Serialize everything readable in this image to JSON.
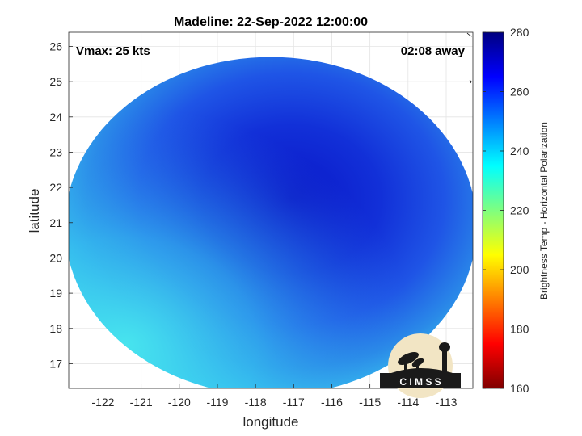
{
  "chart_data": {
    "type": "heatmap",
    "title": "Madeline: 22-Sep-2022 12:00:00",
    "xlabel": "longitude",
    "ylabel": "latitude",
    "xlim": [
      -122.9,
      -112.3
    ],
    "ylim": [
      16.3,
      26.4
    ],
    "x_ticks": [
      -122,
      -121,
      -120,
      -119,
      -118,
      -117,
      -116,
      -115,
      -114,
      -113
    ],
    "y_ticks": [
      17,
      18,
      19,
      20,
      21,
      22,
      23,
      24,
      25,
      26
    ],
    "grid": true,
    "annotations": {
      "vmax": "Vmax: 25 kts",
      "time_away": "02:08 away"
    },
    "colorbar": {
      "label": "Brightness Temp - Horizontal Polarization",
      "range": [
        160,
        280
      ],
      "ticks": [
        160,
        180,
        200,
        220,
        240,
        260,
        280
      ],
      "colormap": "jet"
    },
    "swath": {
      "center_lon": -117.6,
      "center_lat": 20.9,
      "radius_lon": 5.4,
      "radius_lat": 4.8,
      "center_value": 268,
      "edge_value": 236
    },
    "logo_text": "C I M S S"
  }
}
